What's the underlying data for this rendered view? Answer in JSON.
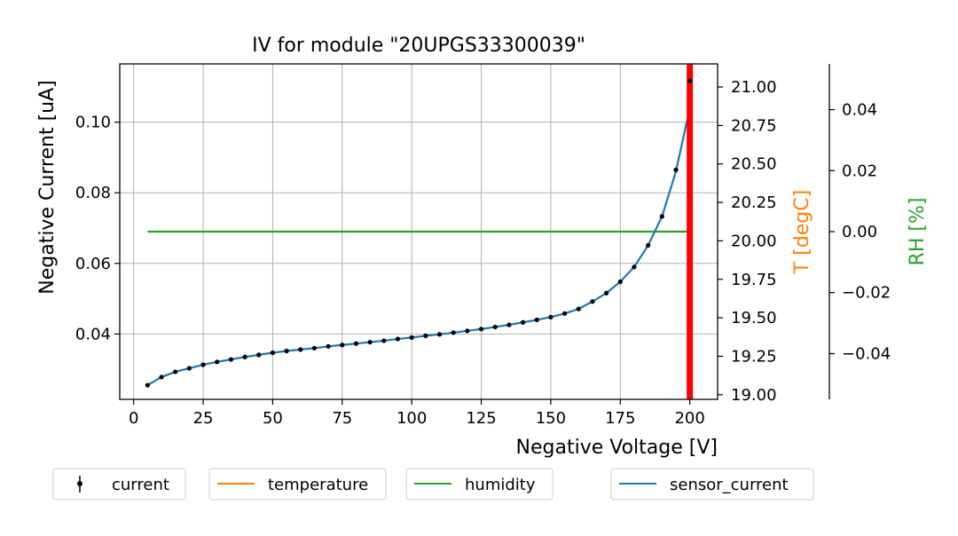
{
  "chart_data": {
    "type": "line",
    "title": "IV for module \"20UPGS33300039\"",
    "xlabel": "Negative Voltage [V]",
    "ylabel": "Negative Current [uA]",
    "ylabel_temp": "T [degC]",
    "ylabel_rh": "RH [%]",
    "xlim": [
      -5,
      210
    ],
    "ylim": [
      0.0215,
      0.1165
    ],
    "ylim_temp": [
      18.97,
      21.15
    ],
    "ylim_rh": [
      -0.055,
      0.055
    ],
    "x_ticks": [
      0,
      25,
      50,
      75,
      100,
      125,
      150,
      175,
      200
    ],
    "y_ticks": [
      0.04,
      0.06,
      0.08,
      0.1
    ],
    "y_tick_labels": [
      "0.04",
      "0.06",
      "0.08",
      "0.10"
    ],
    "temp_ticks": [
      19.0,
      19.25,
      19.5,
      19.75,
      20.0,
      20.25,
      20.5,
      20.75,
      21.0
    ],
    "temp_tick_labels": [
      "19.00",
      "19.25",
      "19.50",
      "19.75",
      "20.00",
      "20.25",
      "20.50",
      "20.75",
      "21.00"
    ],
    "rh_ticks": [
      -0.04,
      -0.02,
      0.0,
      0.02,
      0.04
    ],
    "rh_tick_labels": [
      "−0.04",
      "−0.02",
      "0.00",
      "0.02",
      "0.04"
    ],
    "grid": true,
    "vline_x": 200,
    "series": [
      {
        "name": "current",
        "style": "errorbar-points",
        "x": [
          5,
          10,
          15,
          20,
          25,
          30,
          35,
          40,
          45,
          50,
          55,
          60,
          65,
          70,
          75,
          80,
          85,
          90,
          95,
          100,
          105,
          110,
          115,
          120,
          125,
          130,
          135,
          140,
          145,
          150,
          155,
          160,
          165,
          170,
          175,
          180,
          185,
          190,
          195,
          200
        ],
        "values": [
          0.0255,
          0.0278,
          0.0293,
          0.0303,
          0.0313,
          0.0321,
          0.0328,
          0.0335,
          0.0341,
          0.0347,
          0.0352,
          0.0356,
          0.036,
          0.0365,
          0.0369,
          0.0373,
          0.0377,
          0.0381,
          0.0386,
          0.039,
          0.0395,
          0.0399,
          0.0404,
          0.0409,
          0.0414,
          0.042,
          0.0426,
          0.0433,
          0.044,
          0.0448,
          0.0458,
          0.0471,
          0.0492,
          0.0516,
          0.0548,
          0.059,
          0.0651,
          0.0733,
          0.0865,
          0.1117
        ]
      },
      {
        "name": "sensor_current",
        "style": "line",
        "x": [
          5,
          10,
          15,
          20,
          25,
          30,
          35,
          40,
          45,
          50,
          55,
          60,
          65,
          70,
          75,
          80,
          85,
          90,
          95,
          100,
          105,
          110,
          115,
          120,
          125,
          130,
          135,
          140,
          145,
          150,
          155,
          160,
          165,
          170,
          175,
          180,
          185,
          190,
          195,
          200
        ],
        "values": [
          0.0255,
          0.0278,
          0.0293,
          0.0303,
          0.0313,
          0.0321,
          0.0328,
          0.0335,
          0.0341,
          0.0347,
          0.0352,
          0.0356,
          0.036,
          0.0365,
          0.0369,
          0.0373,
          0.0377,
          0.0381,
          0.0386,
          0.039,
          0.0395,
          0.0399,
          0.0404,
          0.0409,
          0.0414,
          0.042,
          0.0426,
          0.0433,
          0.044,
          0.0448,
          0.0458,
          0.0471,
          0.0492,
          0.0516,
          0.0548,
          0.059,
          0.0651,
          0.0733,
          0.086,
          0.104
        ]
      },
      {
        "name": "humidity",
        "style": "line",
        "axis": "rh",
        "x": [
          5,
          200
        ],
        "values": [
          0.0,
          0.0
        ]
      },
      {
        "name": "temperature",
        "style": "line",
        "axis": "temp",
        "x": [],
        "values": []
      }
    ],
    "legend": [
      "current",
      "temperature",
      "humidity",
      "sensor_current"
    ]
  },
  "colors": {
    "current": "#000000",
    "sensor_current": "#1f77b4",
    "temperature": "#ff7f0e",
    "humidity": "#2ca02c",
    "vline": "#ff0000",
    "grid": "#b0b0b0"
  }
}
